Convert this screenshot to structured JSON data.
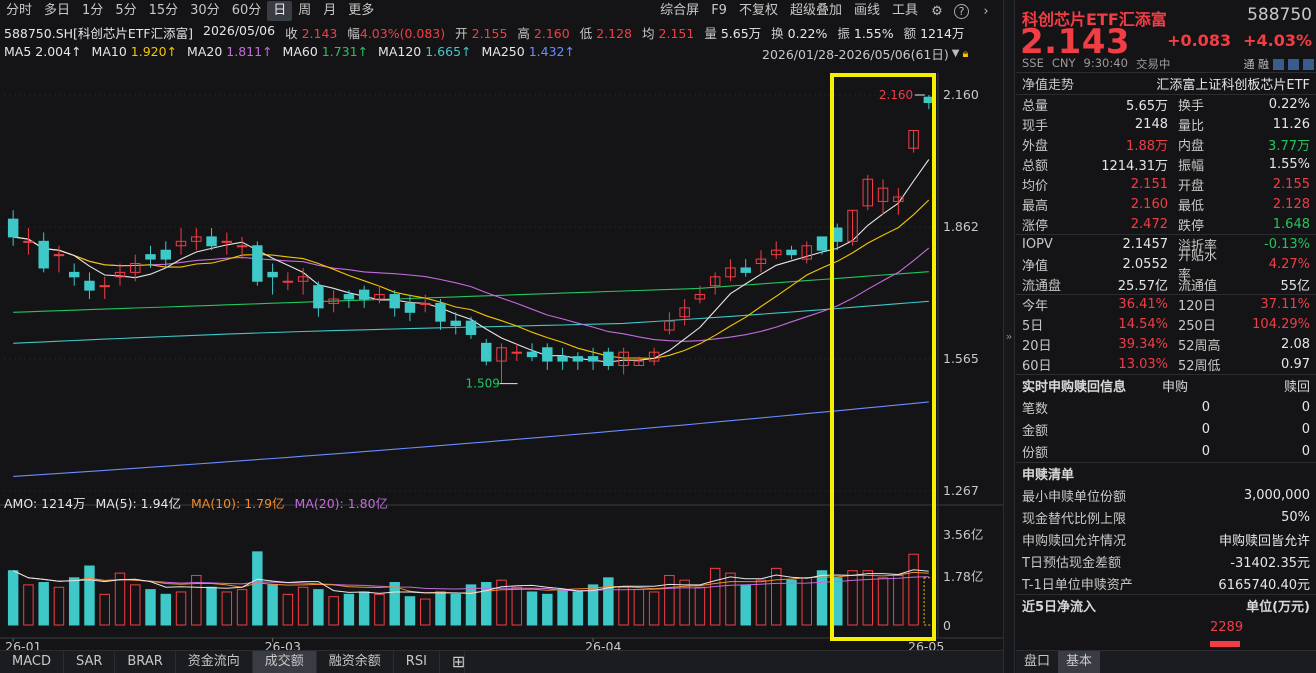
{
  "toolbar": {
    "periods": [
      "分时",
      "多日",
      "1分",
      "5分",
      "15分",
      "30分",
      "60分",
      "日",
      "周",
      "月",
      "更多"
    ],
    "active_period": "日",
    "right_items": [
      "综合屏",
      "F9",
      "不复权",
      "超级叠加",
      "画线",
      "工具"
    ],
    "icons": [
      "gear-icon",
      "help-icon",
      "chevron-right-icon"
    ]
  },
  "info": {
    "symbol": "588750.SH[科创芯片ETF汇添富]",
    "date": "2026/05/06",
    "close_label": "收",
    "close": "2.143",
    "change_label": "幅",
    "change": "4.03%(0.083)",
    "open_label": "开",
    "open": "2.155",
    "high_label": "高",
    "high": "2.160",
    "low_label": "低",
    "low": "2.128",
    "avg_label": "均",
    "avg": "2.151",
    "volume_label": "量",
    "volume": "5.65万",
    "turnover_label": "换",
    "turnover": "0.22%",
    "amplitude_label": "振",
    "amplitude": "1.55%",
    "amount_label": "额",
    "amount": "1214万"
  },
  "ma": [
    {
      "label": "MA5",
      "value": "2.004↑",
      "color": "#e6e6e6"
    },
    {
      "label": "MA10",
      "value": "1.920↑",
      "color": "#f5c400"
    },
    {
      "label": "MA20",
      "value": "1.811↑",
      "color": "#c56bdc"
    },
    {
      "label": "MA60",
      "value": "1.731↑",
      "color": "#22c55e"
    },
    {
      "label": "MA120",
      "value": "1.665↑",
      "color": "#3ec8c8"
    },
    {
      "label": "MA250",
      "value": "1.432↑",
      "color": "#6b8cff"
    }
  ],
  "date_range": "2026/01/28-2026/05/06(61日)",
  "amo": {
    "label": "AMO: 1214万",
    "ma5": "MA(5): 1.94亿",
    "ma10": "MA(10): 1.79亿",
    "ma20": "MA(20): 1.80亿"
  },
  "chart_data": {
    "type": "candlestick",
    "y_ticks": [
      "2.160",
      "1.862",
      "1.565",
      "1.267"
    ],
    "ylim": [
      1.267,
      2.16
    ],
    "vol_ticks": [
      "3.56亿",
      "1.78亿",
      "0"
    ],
    "x_ticks": [
      "26-01",
      "26-03",
      "26-04",
      "26-05"
    ],
    "annotations": {
      "max": "2.160",
      "min": "1.509"
    },
    "candles": [
      [
        1.88,
        1.84,
        1.9,
        1.82,
        2.3
      ],
      [
        1.83,
        1.83,
        1.86,
        1.8,
        1.7
      ],
      [
        1.83,
        1.77,
        1.85,
        1.76,
        1.8
      ],
      [
        1.8,
        1.8,
        1.82,
        1.76,
        1.6
      ],
      [
        1.76,
        1.75,
        1.78,
        1.73,
        2.0
      ],
      [
        1.74,
        1.72,
        1.76,
        1.7,
        2.5
      ],
      [
        1.73,
        1.73,
        1.75,
        1.7,
        1.3
      ],
      [
        1.75,
        1.76,
        1.78,
        1.73,
        2.2
      ],
      [
        1.76,
        1.78,
        1.8,
        1.74,
        1.7
      ],
      [
        1.8,
        1.79,
        1.82,
        1.77,
        1.5
      ],
      [
        1.81,
        1.79,
        1.83,
        1.77,
        1.3
      ],
      [
        1.82,
        1.83,
        1.86,
        1.8,
        1.4
      ],
      [
        1.83,
        1.84,
        1.86,
        1.81,
        2.1
      ],
      [
        1.84,
        1.82,
        1.86,
        1.81,
        1.6
      ],
      [
        1.83,
        1.83,
        1.85,
        1.8,
        1.4
      ],
      [
        1.82,
        1.82,
        1.84,
        1.79,
        1.5
      ],
      [
        1.82,
        1.74,
        1.83,
        1.73,
        3.1
      ],
      [
        1.76,
        1.75,
        1.78,
        1.71,
        1.7
      ],
      [
        1.74,
        1.74,
        1.76,
        1.72,
        1.3
      ],
      [
        1.74,
        1.75,
        1.77,
        1.71,
        1.6
      ],
      [
        1.73,
        1.68,
        1.74,
        1.66,
        1.5
      ],
      [
        1.69,
        1.7,
        1.72,
        1.67,
        1.2
      ],
      [
        1.71,
        1.7,
        1.72,
        1.68,
        1.3
      ],
      [
        1.72,
        1.7,
        1.73,
        1.68,
        1.4
      ],
      [
        1.7,
        1.71,
        1.73,
        1.69,
        1.3
      ],
      [
        1.71,
        1.68,
        1.72,
        1.66,
        1.8
      ],
      [
        1.69,
        1.67,
        1.71,
        1.65,
        1.2
      ],
      [
        1.69,
        1.69,
        1.71,
        1.67,
        1.1
      ],
      [
        1.69,
        1.65,
        1.7,
        1.63,
        1.4
      ],
      [
        1.65,
        1.64,
        1.67,
        1.62,
        1.3
      ],
      [
        1.65,
        1.62,
        1.66,
        1.61,
        1.7
      ],
      [
        1.6,
        1.56,
        1.61,
        1.55,
        1.8
      ],
      [
        1.56,
        1.59,
        1.6,
        1.51,
        1.9
      ],
      [
        1.58,
        1.58,
        1.6,
        1.56,
        1.6
      ],
      [
        1.58,
        1.57,
        1.6,
        1.56,
        1.4
      ],
      [
        1.59,
        1.56,
        1.6,
        1.54,
        1.3
      ],
      [
        1.57,
        1.56,
        1.59,
        1.54,
        1.5
      ],
      [
        1.57,
        1.56,
        1.58,
        1.54,
        1.4
      ],
      [
        1.57,
        1.56,
        1.59,
        1.54,
        1.7
      ],
      [
        1.58,
        1.55,
        1.59,
        1.54,
        2.0
      ],
      [
        1.55,
        1.58,
        1.59,
        1.53,
        1.6
      ],
      [
        1.55,
        1.56,
        1.57,
        1.55,
        1.5
      ],
      [
        1.56,
        1.58,
        1.59,
        1.55,
        1.4
      ],
      [
        1.63,
        1.65,
        1.67,
        1.62,
        2.1
      ],
      [
        1.66,
        1.68,
        1.7,
        1.64,
        1.9
      ],
      [
        1.7,
        1.71,
        1.73,
        1.69,
        1.6
      ],
      [
        1.73,
        1.75,
        1.76,
        1.71,
        2.4
      ],
      [
        1.75,
        1.77,
        1.79,
        1.74,
        2.2
      ],
      [
        1.77,
        1.76,
        1.79,
        1.75,
        1.7
      ],
      [
        1.78,
        1.79,
        1.81,
        1.76,
        1.9
      ],
      [
        1.8,
        1.81,
        1.83,
        1.79,
        2.4
      ],
      [
        1.81,
        1.8,
        1.82,
        1.79,
        1.9
      ],
      [
        1.79,
        1.82,
        1.83,
        1.78,
        2.0
      ],
      [
        1.84,
        1.81,
        1.84,
        1.8,
        2.3
      ],
      [
        1.86,
        1.83,
        1.87,
        1.81,
        2.0
      ],
      [
        1.83,
        1.9,
        1.9,
        1.82,
        2.3
      ],
      [
        1.91,
        1.97,
        1.98,
        1.9,
        2.3
      ],
      [
        1.92,
        1.95,
        1.97,
        1.89,
        2.0
      ],
      [
        1.92,
        1.93,
        1.95,
        1.89,
        2.1
      ],
      [
        2.04,
        2.08,
        2.08,
        2.03,
        3.0
      ],
      [
        2.155,
        2.143,
        2.16,
        2.128,
        2.0
      ]
    ]
  },
  "right_panel": {
    "title": "科创芯片ETF汇添富",
    "code": "588750",
    "price": "2.143",
    "change": "+0.083",
    "change_pct": "+4.03%",
    "meta": [
      "SSE",
      "CNY",
      "9:30:40",
      "交易中"
    ],
    "right_icons": "通 融",
    "nav_trend_label": "净值走势",
    "nav_trend_value": "汇添富上证科创板芯片ETF",
    "rows": [
      [
        "总量",
        "5.65万",
        "换手",
        "0.22%",
        "#e6e6e6",
        "#e6e6e6"
      ],
      [
        "现手",
        "2148",
        "量比",
        "11.26",
        "#e6e6e6",
        "#e6e6e6"
      ],
      [
        "外盘",
        "1.88万",
        "内盘",
        "3.77万",
        "#f23d45",
        "#22c55e"
      ],
      [
        "总额",
        "1214.31万",
        "振幅",
        "1.55%",
        "#e6e6e6",
        "#e6e6e6"
      ],
      [
        "均价",
        "2.151",
        "开盘",
        "2.155",
        "#f23d45",
        "#f23d45"
      ],
      [
        "最高",
        "2.160",
        "最低",
        "2.128",
        "#f23d45",
        "#f23d45"
      ],
      [
        "涨停",
        "2.472",
        "跌停",
        "1.648",
        "#f23d45",
        "#22c55e"
      ]
    ],
    "rows2": [
      [
        "IOPV",
        "2.1457",
        "溢折率",
        "-0.13%",
        "#e6e6e6",
        "#22c55e"
      ],
      [
        "净值",
        "2.0552",
        "开贴水率",
        "4.27%",
        "#e6e6e6",
        "#f23d45"
      ],
      [
        "流通盘",
        "25.57亿",
        "流通值",
        "55亿",
        "#e6e6e6",
        "#e6e6e6"
      ]
    ],
    "rows3": [
      [
        "今年",
        "36.41%",
        "120日",
        "37.11%",
        "#f23d45",
        "#f23d45"
      ],
      [
        "5日",
        "14.54%",
        "250日",
        "104.29%",
        "#f23d45",
        "#f23d45"
      ],
      [
        "20日",
        "39.34%",
        "52周高",
        "2.08",
        "#f23d45",
        "#e6e6e6"
      ],
      [
        "60日",
        "13.03%",
        "52周低",
        "0.97",
        "#f23d45",
        "#e6e6e6"
      ]
    ],
    "sub_redeem_head": [
      "实时申购赎回信息",
      "申购",
      "赎回"
    ],
    "sub_redeem_rows": [
      [
        "笔数",
        "0",
        "0"
      ],
      [
        "金额",
        "0",
        "0"
      ],
      [
        "份额",
        "0",
        "0"
      ]
    ],
    "list_head": "申赎清单",
    "list_rows": [
      [
        "最小申赎单位份额",
        "3,000,000"
      ],
      [
        "现金替代比例上限",
        "50%"
      ],
      [
        "申购赎回允许情况",
        "申购赎回皆允许"
      ],
      [
        "T日预估现金差额",
        "-31402.35元"
      ],
      [
        "T-1日单位申赎资产",
        "6165740.40元"
      ]
    ],
    "flow_head": "近5日净流入",
    "flow_unit": "单位(万元)",
    "flow_value": "2289"
  },
  "bottom_tabs": [
    "MACD",
    "SAR",
    "BRAR",
    "资金流向",
    "成交额",
    "融资余额",
    "RSI"
  ],
  "active_bottom_tab": "成交额",
  "right_tabs": [
    "盘口",
    "基本"
  ],
  "active_right_tab": "基本",
  "colors": {
    "up": "#f23d45",
    "down": "#3ec8c8",
    "highlight": "#f5f000"
  }
}
